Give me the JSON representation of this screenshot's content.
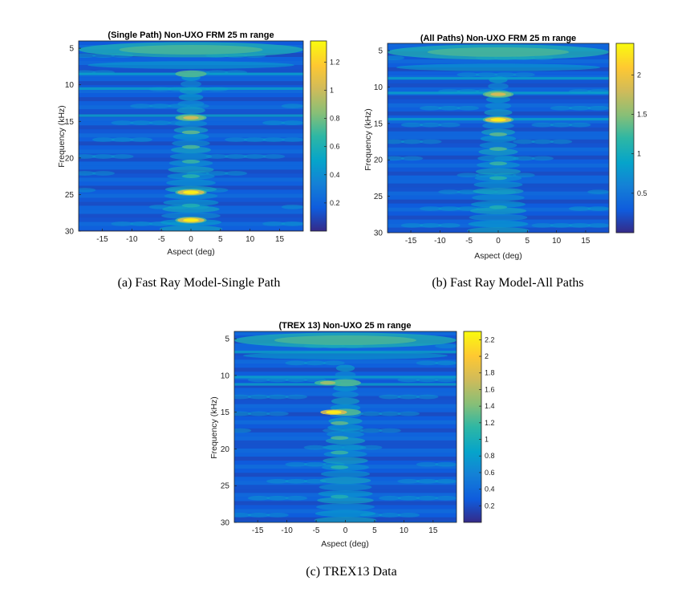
{
  "chart_data": [
    {
      "type": "heatmap",
      "title": "(Single Path) Non-UXO FRM 25 m range",
      "caption": "(a) Fast Ray Model-Single Path",
      "xlabel": "Aspect (deg)",
      "ylabel": "Frequency (kHz)",
      "xlim": [
        -19,
        19
      ],
      "ylim": [
        4,
        30
      ],
      "y_reversed": true,
      "xticks": [
        -15,
        -10,
        -5,
        0,
        5,
        10,
        15
      ],
      "yticks": [
        5,
        10,
        15,
        20,
        25,
        30
      ],
      "colormap": "parula",
      "clim": [
        0,
        1.35
      ],
      "colorbar_ticks": [
        0.2,
        0.4,
        0.6,
        0.8,
        1,
        1.2
      ],
      "bright_bands_khz": [
        5,
        8.5,
        14.5,
        24.7,
        28.5
      ],
      "peak_values": [
        {
          "aspect": 0,
          "frequency": 24.7,
          "value": 1.3
        },
        {
          "aspect": 0,
          "frequency": 28.5,
          "value": 1.3
        },
        {
          "aspect": 0,
          "frequency": 14.5,
          "value": 1.0
        }
      ]
    },
    {
      "type": "heatmap",
      "title": "(All Paths) Non-UXO FRM 25 m range",
      "caption": "(b) Fast Ray Model-All Paths",
      "xlabel": "Aspect (deg)",
      "ylabel": "Frequency (kHz)",
      "xlim": [
        -19,
        19
      ],
      "ylim": [
        4,
        30
      ],
      "y_reversed": true,
      "xticks": [
        -15,
        -10,
        -5,
        0,
        5,
        10,
        15
      ],
      "yticks": [
        5,
        10,
        15,
        20,
        25,
        30
      ],
      "colormap": "parula",
      "clim": [
        0,
        2.4
      ],
      "colorbar_ticks": [
        0.5,
        1,
        1.5,
        2
      ],
      "bright_bands_khz": [
        5,
        11,
        14.5
      ],
      "peak_values": [
        {
          "aspect": 0,
          "frequency": 14.5,
          "value": 2.3
        },
        {
          "aspect": 0,
          "frequency": 11,
          "value": 1.8
        }
      ]
    },
    {
      "type": "heatmap",
      "title": "(TREX 13) Non-UXO 25 m range",
      "caption": "(c) TREX13 Data",
      "xlabel": "Aspect (deg)",
      "ylabel": "Frequency (kHz)",
      "xlim": [
        -19,
        19
      ],
      "ylim": [
        4,
        30
      ],
      "y_reversed": true,
      "xticks": [
        -15,
        -10,
        -5,
        0,
        5,
        10,
        15
      ],
      "yticks": [
        5,
        10,
        15,
        20,
        25,
        30
      ],
      "colormap": "parula",
      "clim": [
        0,
        2.3
      ],
      "colorbar_ticks": [
        0.2,
        0.4,
        0.6,
        0.8,
        1,
        1.2,
        1.4,
        1.6,
        1.8,
        2,
        2.2
      ],
      "bright_bands_khz": [
        5,
        11,
        15
      ],
      "peak_values": [
        {
          "aspect": -2,
          "frequency": 15,
          "value": 2.2
        },
        {
          "aspect": -3,
          "frequency": 11,
          "value": 1.5
        }
      ]
    }
  ]
}
